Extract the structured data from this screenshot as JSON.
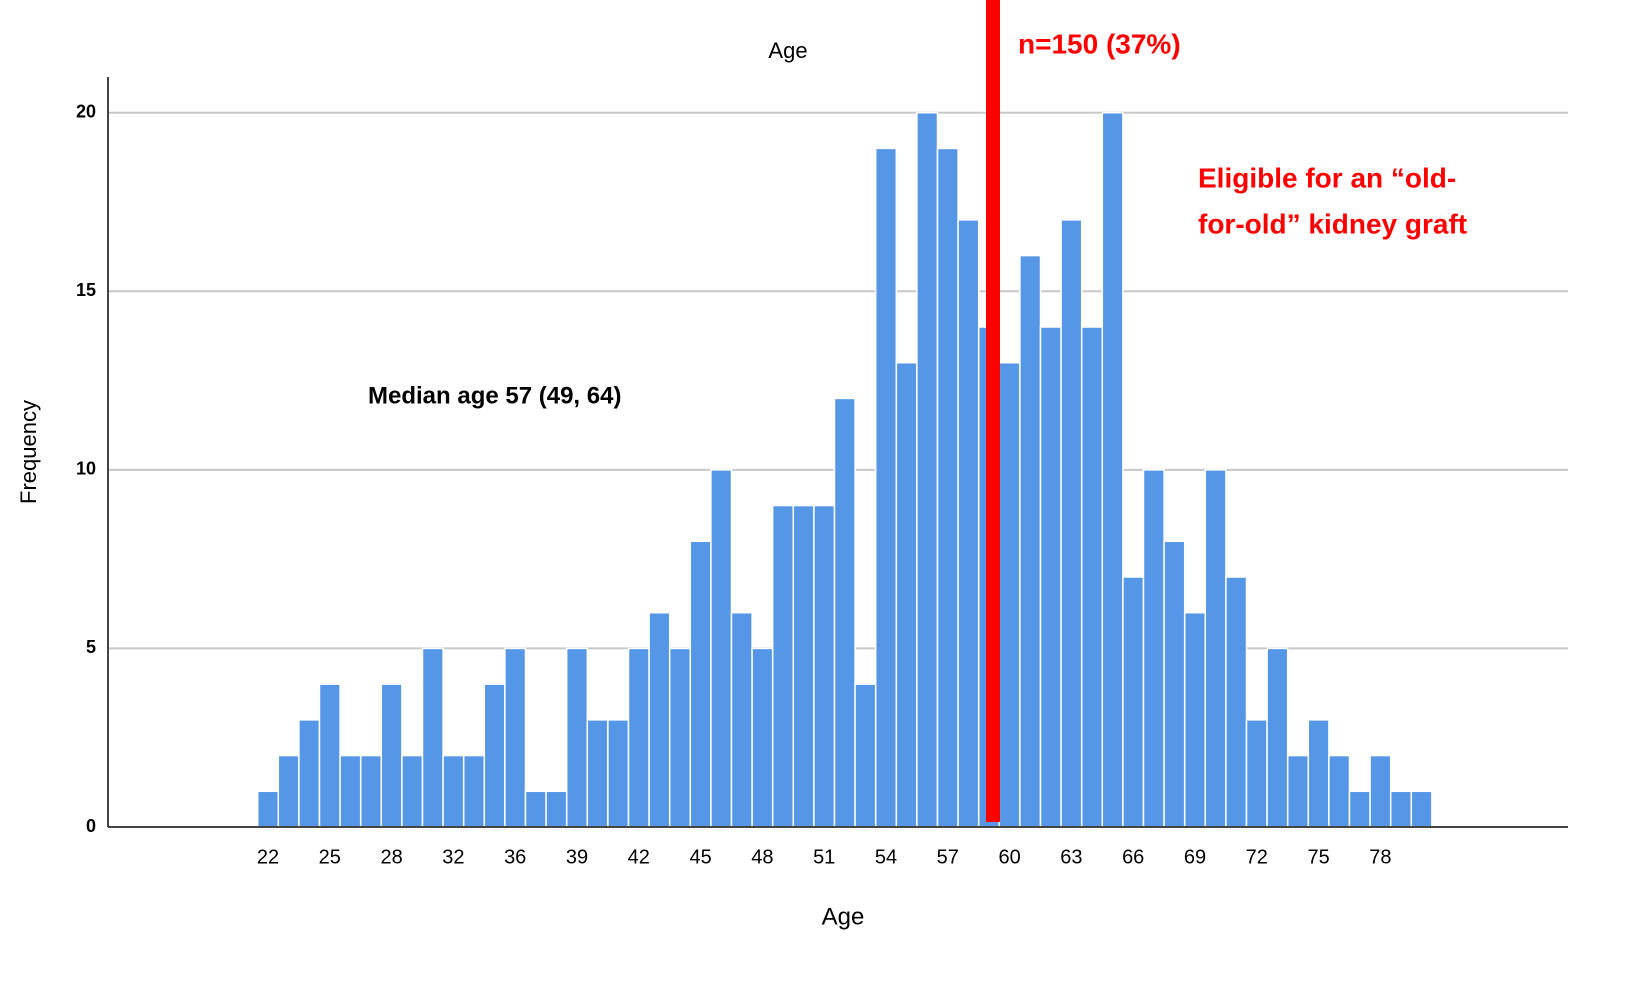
{
  "chart_data": {
    "type": "bar",
    "title": "Age",
    "x_label": "Age",
    "y_label": "Frequency",
    "categories": [
      "22",
      null,
      null,
      "25",
      null,
      null,
      "28",
      null,
      null,
      "32",
      null,
      null,
      "36",
      null,
      null,
      "39",
      null,
      null,
      "42",
      null,
      null,
      "45",
      null,
      null,
      "48",
      null,
      null,
      "51",
      null,
      null,
      "54",
      null,
      null,
      "57",
      null,
      null,
      "60",
      null,
      null,
      "63",
      null,
      null,
      "66",
      null,
      null,
      "69",
      null,
      null,
      "72",
      null,
      null,
      "75",
      null,
      null,
      "78",
      null,
      null
    ],
    "values": [
      1,
      2,
      3,
      4,
      2,
      2,
      4,
      2,
      5,
      2,
      2,
      4,
      5,
      1,
      1,
      5,
      3,
      3,
      5,
      6,
      5,
      8,
      10,
      6,
      5,
      9,
      9,
      9,
      12,
      4,
      19,
      13,
      20,
      19,
      17,
      14,
      13,
      16,
      14,
      17,
      14,
      20,
      7,
      10,
      8,
      6,
      10,
      7,
      3,
      5,
      2,
      3,
      2,
      1,
      2,
      1,
      1
    ],
    "color": "#5596e6",
    "ylim": [
      0,
      21
    ],
    "yticks": [
      0,
      5,
      10,
      15,
      20
    ],
    "grid": true,
    "annotations": [
      "n=150 (37%)",
      "Eligible for an “old-",
      "for-old” kidney graft",
      "Median age 57 (49, 64)"
    ]
  }
}
